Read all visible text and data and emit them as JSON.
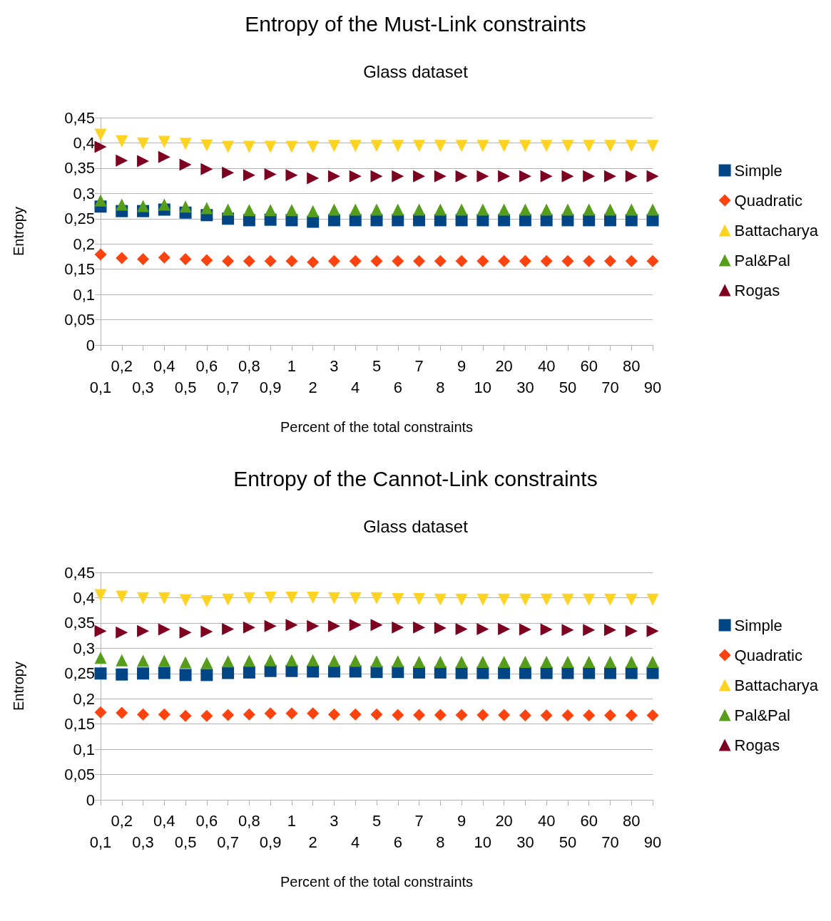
{
  "chart_data": [
    {
      "type": "scatter",
      "title": "Entropy of the Must-Link constraints",
      "subtitle": "Glass dataset",
      "xlabel": "Percent of the total constraints",
      "ylabel": "Entropy",
      "categories": [
        "0,1",
        "0,2",
        "0,3",
        "0,4",
        "0,5",
        "0,6",
        "0,7",
        "0,8",
        "0,9",
        "1",
        "2",
        "3",
        "4",
        "5",
        "6",
        "7",
        "8",
        "9",
        "10",
        "20",
        "30",
        "40",
        "50",
        "60",
        "70",
        "80",
        "90"
      ],
      "series": [
        {
          "name": "Simple",
          "color": "#004586",
          "marker": "square",
          "values": [
            0.274,
            0.265,
            0.265,
            0.268,
            0.262,
            0.257,
            0.25,
            0.247,
            0.248,
            0.247,
            0.244,
            0.247,
            0.247,
            0.247,
            0.247,
            0.247,
            0.247,
            0.247,
            0.247,
            0.247,
            0.247,
            0.247,
            0.247,
            0.247,
            0.247,
            0.247,
            0.247
          ]
        },
        {
          "name": "Quadratic",
          "color": "#ff420e",
          "marker": "diamond",
          "values": [
            0.179,
            0.172,
            0.17,
            0.173,
            0.17,
            0.168,
            0.166,
            0.166,
            0.166,
            0.166,
            0.164,
            0.166,
            0.166,
            0.166,
            0.166,
            0.166,
            0.166,
            0.166,
            0.166,
            0.166,
            0.166,
            0.166,
            0.166,
            0.166,
            0.166,
            0.166,
            0.166
          ]
        },
        {
          "name": "Battacharya",
          "color": "#ffd320",
          "marker": "triangle-down",
          "values": [
            0.416,
            0.403,
            0.399,
            0.402,
            0.398,
            0.395,
            0.392,
            0.392,
            0.392,
            0.392,
            0.392,
            0.394,
            0.394,
            0.394,
            0.394,
            0.394,
            0.394,
            0.394,
            0.394,
            0.394,
            0.394,
            0.394,
            0.394,
            0.394,
            0.394,
            0.394,
            0.394
          ]
        },
        {
          "name": "Pal&Pal",
          "color": "#579d1c",
          "marker": "triangle",
          "values": [
            0.286,
            0.278,
            0.275,
            0.278,
            0.274,
            0.271,
            0.268,
            0.267,
            0.267,
            0.267,
            0.265,
            0.268,
            0.268,
            0.268,
            0.268,
            0.268,
            0.268,
            0.268,
            0.268,
            0.268,
            0.268,
            0.268,
            0.268,
            0.268,
            0.268,
            0.268,
            0.268
          ]
        },
        {
          "name": "Rogas",
          "color": "#7e0021",
          "marker": "triangle-right",
          "values": [
            0.392,
            0.365,
            0.364,
            0.372,
            0.357,
            0.348,
            0.341,
            0.336,
            0.338,
            0.336,
            0.33,
            0.334,
            0.334,
            0.334,
            0.334,
            0.334,
            0.334,
            0.334,
            0.334,
            0.334,
            0.334,
            0.334,
            0.334,
            0.334,
            0.334,
            0.334,
            0.334
          ]
        }
      ],
      "ylim": [
        0,
        0.45
      ],
      "yticks": [
        0,
        {
          "value": 0.05,
          "label": "0,05"
        },
        {
          "value": 0.1,
          "label": "0,1"
        },
        {
          "value": 0.15,
          "label": "0,15"
        },
        {
          "value": 0.2,
          "label": "0,2"
        },
        {
          "value": 0.25,
          "label": "0,25"
        },
        {
          "value": 0.3,
          "label": "0,3"
        },
        {
          "value": 0.35,
          "label": "0,35"
        },
        {
          "value": 0.4,
          "label": "0,4"
        },
        {
          "value": 0.45,
          "label": "0,45"
        }
      ],
      "grid": "y",
      "legend": "right"
    },
    {
      "type": "scatter",
      "title": "Entropy of the Cannot-Link constraints",
      "subtitle": "Glass dataset",
      "xlabel": "Percent of the total constraints",
      "ylabel": "Entropy",
      "categories": [
        "0,1",
        "0,2",
        "0,3",
        "0,4",
        "0,5",
        "0,6",
        "0,7",
        "0,8",
        "0,9",
        "1",
        "2",
        "3",
        "4",
        "5",
        "6",
        "7",
        "8",
        "9",
        "10",
        "20",
        "30",
        "40",
        "50",
        "60",
        "70",
        "80",
        "90"
      ],
      "series": [
        {
          "name": "Simple",
          "color": "#004586",
          "marker": "square",
          "values": [
            0.25,
            0.248,
            0.25,
            0.251,
            0.247,
            0.247,
            0.251,
            0.252,
            0.255,
            0.255,
            0.254,
            0.254,
            0.254,
            0.253,
            0.253,
            0.252,
            0.252,
            0.251,
            0.251,
            0.251,
            0.251,
            0.251,
            0.251,
            0.251,
            0.251,
            0.251,
            0.251
          ]
        },
        {
          "name": "Quadratic",
          "color": "#ff420e",
          "marker": "diamond",
          "values": [
            0.173,
            0.172,
            0.169,
            0.169,
            0.166,
            0.166,
            0.168,
            0.169,
            0.171,
            0.171,
            0.171,
            0.169,
            0.169,
            0.169,
            0.168,
            0.168,
            0.168,
            0.168,
            0.168,
            0.168,
            0.167,
            0.167,
            0.167,
            0.167,
            0.167,
            0.167,
            0.167
          ]
        },
        {
          "name": "Battacharya",
          "color": "#ffd320",
          "marker": "triangle-down",
          "values": [
            0.405,
            0.402,
            0.399,
            0.399,
            0.395,
            0.393,
            0.396,
            0.399,
            0.4,
            0.4,
            0.4,
            0.399,
            0.399,
            0.399,
            0.397,
            0.397,
            0.396,
            0.396,
            0.396,
            0.396,
            0.396,
            0.396,
            0.396,
            0.396,
            0.396,
            0.396,
            0.396
          ]
        },
        {
          "name": "Pal&Pal",
          "color": "#579d1c",
          "marker": "triangle",
          "values": [
            0.281,
            0.276,
            0.275,
            0.275,
            0.272,
            0.271,
            0.274,
            0.275,
            0.276,
            0.276,
            0.276,
            0.275,
            0.275,
            0.274,
            0.274,
            0.273,
            0.273,
            0.273,
            0.273,
            0.273,
            0.273,
            0.273,
            0.273,
            0.273,
            0.273,
            0.273,
            0.273
          ]
        },
        {
          "name": "Rogas",
          "color": "#7e0021",
          "marker": "triangle-right",
          "values": [
            0.334,
            0.331,
            0.334,
            0.337,
            0.331,
            0.333,
            0.338,
            0.341,
            0.344,
            0.346,
            0.344,
            0.344,
            0.346,
            0.346,
            0.341,
            0.341,
            0.34,
            0.338,
            0.338,
            0.338,
            0.337,
            0.337,
            0.336,
            0.336,
            0.336,
            0.334,
            0.334
          ]
        }
      ],
      "ylim": [
        0,
        0.45
      ],
      "yticks": [
        0,
        {
          "value": 0.05,
          "label": "0,05"
        },
        {
          "value": 0.1,
          "label": "0,1"
        },
        {
          "value": 0.15,
          "label": "0,15"
        },
        {
          "value": 0.2,
          "label": "0,2"
        },
        {
          "value": 0.25,
          "label": "0,25"
        },
        {
          "value": 0.3,
          "label": "0,3"
        },
        {
          "value": 0.35,
          "label": "0,35"
        },
        {
          "value": 0.4,
          "label": "0,4"
        },
        {
          "value": 0.45,
          "label": "0,45"
        }
      ],
      "grid": "y",
      "legend": "right"
    }
  ]
}
